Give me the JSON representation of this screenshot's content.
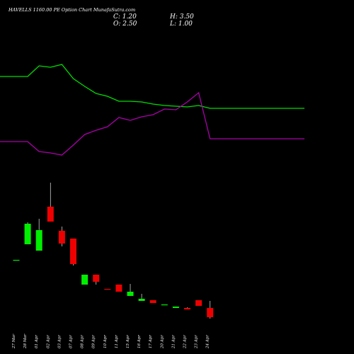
{
  "header": {
    "title": "HAVELLS 1160.00  PE Option  Chart MunafaSutra.com",
    "close": "C: 1.20",
    "high": "H: 3.50",
    "open": "O: 2.50",
    "low": "L: 1.00"
  },
  "colors": {
    "background": "#000000",
    "bullish": "#00ee00",
    "bearish": "#ee0000",
    "line_green": "#00dd00",
    "line_magenta": "#aa00aa",
    "text": "#ffffff"
  },
  "chart_data": {
    "type": "candlestick",
    "categories": [
      "27 Mar",
      "28 Mar",
      "01 Apr",
      "02 Apr",
      "03 Apr",
      "07 Apr",
      "08 Apr",
      "09 Apr",
      "10 Apr",
      "11 Apr",
      "15 Apr",
      "16 Apr",
      "17 Apr",
      "20 Apr",
      "21 Apr",
      "22 Apr",
      "23 Apr",
      "24 Apr"
    ],
    "candles": [
      {
        "open": 9.3,
        "high": 9.3,
        "low": 9.3,
        "close": 9.3
      },
      {
        "open": 11.5,
        "high": 14.6,
        "low": 11.5,
        "close": 14.4
      },
      {
        "open": 10.6,
        "high": 15.1,
        "low": 10.6,
        "close": 13.5
      },
      {
        "open": 16.8,
        "high": 20.2,
        "low": 14.8,
        "close": 14.7
      },
      {
        "open": 13.4,
        "high": 14.0,
        "low": 11.2,
        "close": 11.6
      },
      {
        "open": 12.3,
        "high": 12.3,
        "low": 8.5,
        "close": 8.7
      },
      {
        "open": 5.8,
        "high": 7.2,
        "low": 5.8,
        "close": 7.2
      },
      {
        "open": 7.2,
        "high": 7.2,
        "low": 5.8,
        "close": 6.2
      },
      {
        "open": 5.2,
        "high": 5.2,
        "low": 5.1,
        "close": 5.1
      },
      {
        "open": 5.8,
        "high": 5.8,
        "low": 4.8,
        "close": 4.8
      },
      {
        "open": 4.2,
        "high": 5.9,
        "low": 4.2,
        "close": 4.8
      },
      {
        "open": 3.5,
        "high": 4.5,
        "low": 3.5,
        "close": 3.8
      },
      {
        "open": 3.6,
        "high": 3.6,
        "low": 3.2,
        "close": 3.2
      },
      {
        "open": 3.0,
        "high": 3.0,
        "low": 2.9,
        "close": 3.0
      },
      {
        "open": 2.5,
        "high": 2.7,
        "low": 2.5,
        "close": 2.7
      },
      {
        "open": 2.5,
        "high": 2.6,
        "low": 2.3,
        "close": 2.3
      },
      {
        "open": 3.6,
        "high": 3.6,
        "low": 2.8,
        "close": 2.8
      },
      {
        "open": 2.5,
        "high": 3.5,
        "low": 1.0,
        "close": 1.2
      }
    ],
    "series": [
      {
        "values": [
          82,
          82,
          97,
          95,
          99,
          79,
          68,
          58,
          54,
          47,
          47,
          46,
          43,
          41,
          40,
          39,
          41,
          37
        ]
      },
      {
        "values": [
          -10,
          -10,
          -24,
          -26,
          -29,
          -15,
          0,
          6,
          11,
          24,
          20,
          25,
          28,
          36,
          35,
          46,
          59,
          -6
        ]
      }
    ],
    "price_range": [
      0,
      21
    ],
    "indicator_range": [
      -70,
      120
    ]
  }
}
